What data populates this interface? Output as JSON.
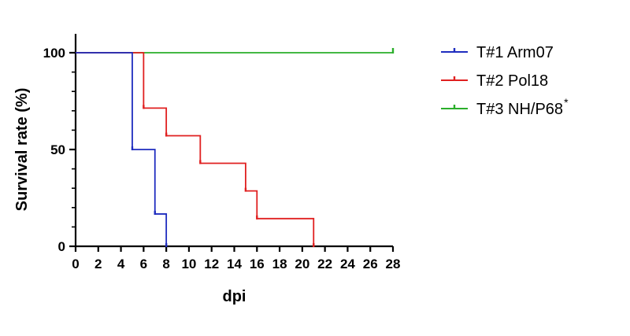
{
  "chart_data": {
    "type": "line",
    "subtype": "kaplan-meier-step",
    "title": "",
    "xlabel": "dpi",
    "ylabel": "Survival rate (%)",
    "xlim": [
      0,
      28
    ],
    "ylim": [
      0,
      100
    ],
    "xticks": [
      0,
      2,
      4,
      6,
      8,
      10,
      12,
      14,
      16,
      18,
      20,
      22,
      24,
      26,
      28
    ],
    "yticks": [
      0,
      50,
      100
    ],
    "grid": false,
    "legend": "right",
    "series": [
      {
        "name": "T#1 Arm07",
        "color": "#1f2dbf",
        "steps": [
          [
            0,
            100
          ],
          [
            5,
            50
          ],
          [
            7,
            16.7
          ],
          [
            8,
            0
          ]
        ],
        "end_x": 8
      },
      {
        "name": "T#2 Pol18",
        "color": "#e02020",
        "steps": [
          [
            0,
            100
          ],
          [
            6,
            71.4
          ],
          [
            8,
            57.1
          ],
          [
            11,
            42.9
          ],
          [
            15,
            28.6
          ],
          [
            16,
            14.3
          ],
          [
            21,
            0
          ]
        ],
        "end_x": 21
      },
      {
        "name": "T#3 NH/P68",
        "name_mark": "*",
        "color": "#2aae2a",
        "steps": [
          [
            0,
            100
          ]
        ],
        "end_x": 28
      }
    ]
  }
}
